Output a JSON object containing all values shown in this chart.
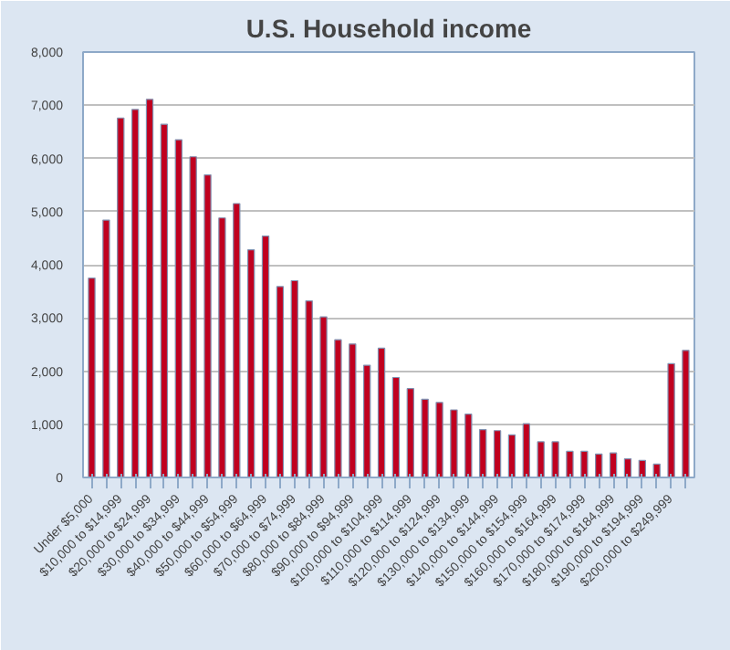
{
  "chart_data": {
    "type": "bar",
    "title": "U.S. Household income",
    "categories": [
      "Under $5,000",
      null,
      "$10,000 to $14,999",
      null,
      "$20,000 to $24,999",
      null,
      "$30,000 to $34,999",
      null,
      "$40,000 to $44,999",
      null,
      "$50,000 to $54,999",
      null,
      "$60,000 to $64,999",
      null,
      "$70,000 to $74,999",
      null,
      "$80,000 to $84,999",
      null,
      "$90,000 to $94,999",
      null,
      "$100,000 to $104,999",
      null,
      "$110,000 to $114,999",
      null,
      "$120,000 to $124,999",
      null,
      "$130,000 to $134,999",
      null,
      "$140,000 to $144,999",
      null,
      "$150,000 to $154,999",
      null,
      "$160,000 to $164,999",
      null,
      "$170,000 to $174,999",
      null,
      "$180,000 to $184,999",
      null,
      "$190,000 to $194,999",
      null,
      "$200,000 to $249,999",
      null
    ],
    "values": [
      3750,
      4840,
      6760,
      6920,
      7110,
      6640,
      6350,
      6030,
      5690,
      4880,
      5150,
      4280,
      4540,
      3590,
      3700,
      3320,
      3020,
      2590,
      2510,
      2110,
      2430,
      1880,
      1670,
      1470,
      1410,
      1270,
      1190,
      900,
      880,
      800,
      1010,
      670,
      670,
      490,
      490,
      440,
      460,
      350,
      320,
      250,
      2140,
      2390
    ],
    "color": "#c0001f",
    "ylim": [
      0,
      8000
    ],
    "yticks": [
      0,
      {
        "value": 1000,
        "label": "1,000"
      },
      {
        "value": 2000,
        "label": "2,000"
      },
      {
        "value": 3000,
        "label": "3,000"
      },
      {
        "value": 4000,
        "label": "4,000"
      },
      {
        "value": 5000,
        "label": "5,000"
      },
      {
        "value": 6000,
        "label": "6,000"
      },
      {
        "value": 7000,
        "label": "7,000"
      },
      {
        "value": 8000,
        "label": "8,000"
      }
    ],
    "grid": "y"
  }
}
